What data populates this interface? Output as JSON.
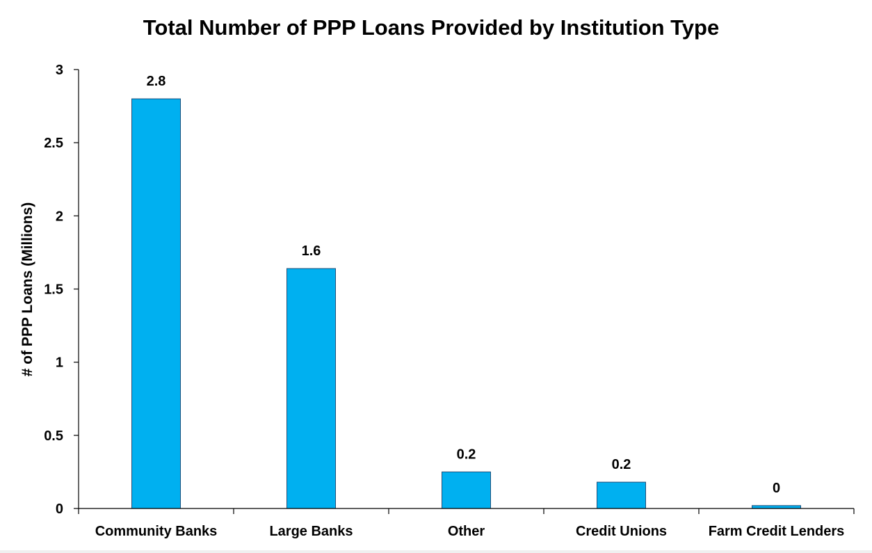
{
  "chart_data": {
    "type": "bar",
    "title": "Total Number of PPP Loans Provided by Institution Type",
    "xlabel": "",
    "ylabel": "# of PPP Loans (Millions)",
    "categories": [
      "Community Banks",
      "Large Banks",
      "Other",
      "Credit Unions",
      "Farm Credit Lenders"
    ],
    "values": [
      2.8,
      1.64,
      0.25,
      0.18,
      0.02
    ],
    "data_labels": [
      "2.8",
      "1.6",
      "0.2",
      "0.2",
      "0"
    ],
    "ylim": [
      0,
      3
    ],
    "yticks": [
      "0",
      "0.5",
      "1",
      "1.5",
      "2",
      "2.5",
      "3"
    ],
    "grid": false,
    "legend": "none",
    "colors": {
      "bar_fill": "#00b0f0",
      "bar_stroke": "#1f4e79"
    }
  }
}
